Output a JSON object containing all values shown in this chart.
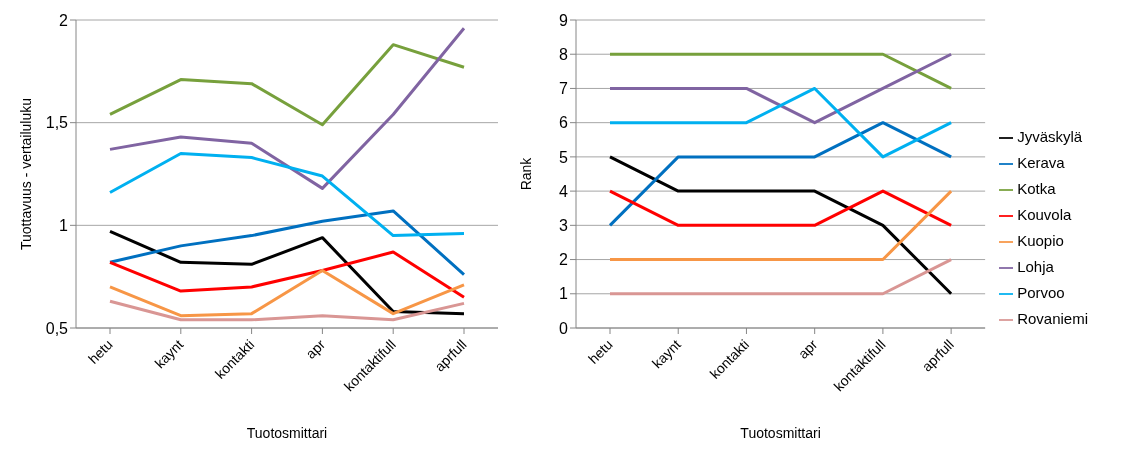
{
  "chart_data": [
    {
      "type": "line",
      "xlabel": "Tuotosmittari",
      "ylabel": "Tuottavuus - vertailuluku",
      "categories": [
        "hetu",
        "kaynt",
        "kontakti",
        "apr",
        "kontaktifull",
        "aprfull"
      ],
      "ylim": [
        0.5,
        2
      ],
      "yticks": [
        {
          "value": 0.5,
          "label": "0,5"
        },
        1,
        {
          "value": 1.5,
          "label": "1,5"
        },
        2
      ],
      "grid": "y",
      "marker": "none",
      "legend": false,
      "series": [
        {
          "color": "#000000",
          "values": [
            0.97,
            0.82,
            0.81,
            0.94,
            0.58,
            0.57
          ]
        },
        {
          "color": "#0070c0",
          "values": [
            0.82,
            0.9,
            0.95,
            1.02,
            1.07,
            0.76
          ]
        },
        {
          "color": "#77a03c",
          "values": [
            1.54,
            1.71,
            1.69,
            1.49,
            1.88,
            1.77
          ]
        },
        {
          "color": "#ff0000",
          "values": [
            0.82,
            0.68,
            0.7,
            0.78,
            0.87,
            0.65
          ]
        },
        {
          "color": "#f79646",
          "values": [
            0.7,
            0.56,
            0.57,
            0.78,
            0.57,
            0.71
          ]
        },
        {
          "color": "#8064a2",
          "values": [
            1.37,
            1.43,
            1.4,
            1.18,
            1.54,
            1.96
          ]
        },
        {
          "color": "#00b0f0",
          "values": [
            1.16,
            1.35,
            1.33,
            1.24,
            0.95,
            0.96
          ]
        },
        {
          "color": "#d99694",
          "values": [
            0.63,
            0.54,
            0.54,
            0.56,
            0.54,
            0.62
          ]
        }
      ]
    },
    {
      "type": "line",
      "xlabel": "Tuotosmittari",
      "ylabel": "Rank",
      "categories": [
        "hetu",
        "kaynt",
        "kontakti",
        "apr",
        "kontaktifull",
        "aprfull"
      ],
      "ylim": [
        0,
        9
      ],
      "yticks": [
        0,
        1,
        2,
        3,
        4,
        5,
        6,
        7,
        8,
        9
      ],
      "grid": "y",
      "marker": "none",
      "legend": "right",
      "series": [
        {
          "name": "Jyväskylä",
          "color": "#000000",
          "values": [
            5,
            4,
            4,
            4,
            3,
            1
          ]
        },
        {
          "name": "Kerava",
          "color": "#0070c0",
          "values": [
            3,
            5,
            5,
            5,
            6,
            5
          ]
        },
        {
          "name": "Kotka",
          "color": "#77a03c",
          "values": [
            8,
            8,
            8,
            8,
            8,
            7
          ]
        },
        {
          "name": "Kouvola",
          "color": "#ff0000",
          "values": [
            4,
            3,
            3,
            3,
            4,
            3
          ]
        },
        {
          "name": "Kuopio",
          "color": "#f79646",
          "values": [
            2,
            2,
            2,
            2,
            2,
            4
          ]
        },
        {
          "name": "Lohja",
          "color": "#8064a2",
          "values": [
            7,
            7,
            7,
            6,
            7,
            8
          ]
        },
        {
          "name": "Porvoo",
          "color": "#00b0f0",
          "values": [
            6,
            6,
            6,
            7,
            5,
            6
          ]
        },
        {
          "name": "Rovaniemi",
          "color": "#d99694",
          "values": [
            1,
            1,
            1,
            1,
            1,
            2
          ]
        }
      ]
    }
  ]
}
